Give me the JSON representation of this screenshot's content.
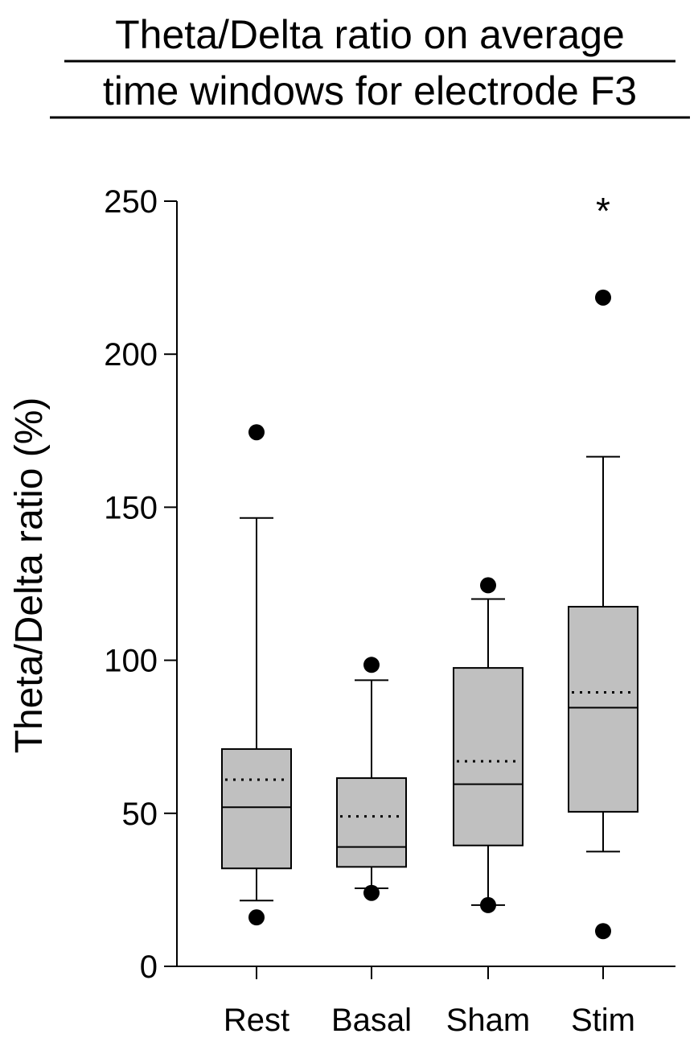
{
  "chart_data": {
    "type": "box",
    "title_lines": [
      "Theta/Delta ratio on average",
      "time windows for electrode F3"
    ],
    "xlabel": "",
    "ylabel": "Theta/Delta ratio (%)",
    "ylim": [
      0,
      250
    ],
    "yticks": [
      "0",
      "50",
      "100",
      "150",
      "200",
      "250"
    ],
    "tick_values": [
      0,
      50,
      100,
      150,
      200,
      250
    ],
    "categories": [
      "Rest",
      "Basal",
      "Sham",
      "Stim"
    ],
    "boxes": [
      {
        "category": "Rest",
        "whisker_low": 21.5,
        "q1": 32,
        "median": 52,
        "mean": 61,
        "q3": 71,
        "whisker_high": 146.5,
        "outliers": [
          16,
          174.5
        ]
      },
      {
        "category": "Basal",
        "whisker_low": 25.5,
        "q1": 32.5,
        "median": 39,
        "mean": 49,
        "q3": 61.5,
        "whisker_high": 93.5,
        "outliers": [
          24,
          98.5
        ]
      },
      {
        "category": "Sham",
        "whisker_low": 20,
        "q1": 39.5,
        "median": 59.5,
        "mean": 67,
        "q3": 97.5,
        "whisker_high": 120,
        "outliers": [
          20,
          124.5
        ]
      },
      {
        "category": "Stim",
        "whisker_low": 37.5,
        "q1": 50.5,
        "median": 84.5,
        "mean": 89.5,
        "q3": 117.5,
        "whisker_high": 166.5,
        "outliers": [
          11.5,
          218.5
        ]
      }
    ],
    "annotations": [
      {
        "category": "Stim",
        "text": "*",
        "y": 250
      }
    ],
    "colors": {
      "box_fill": "#c0c0c0",
      "stroke": "#000000"
    }
  }
}
